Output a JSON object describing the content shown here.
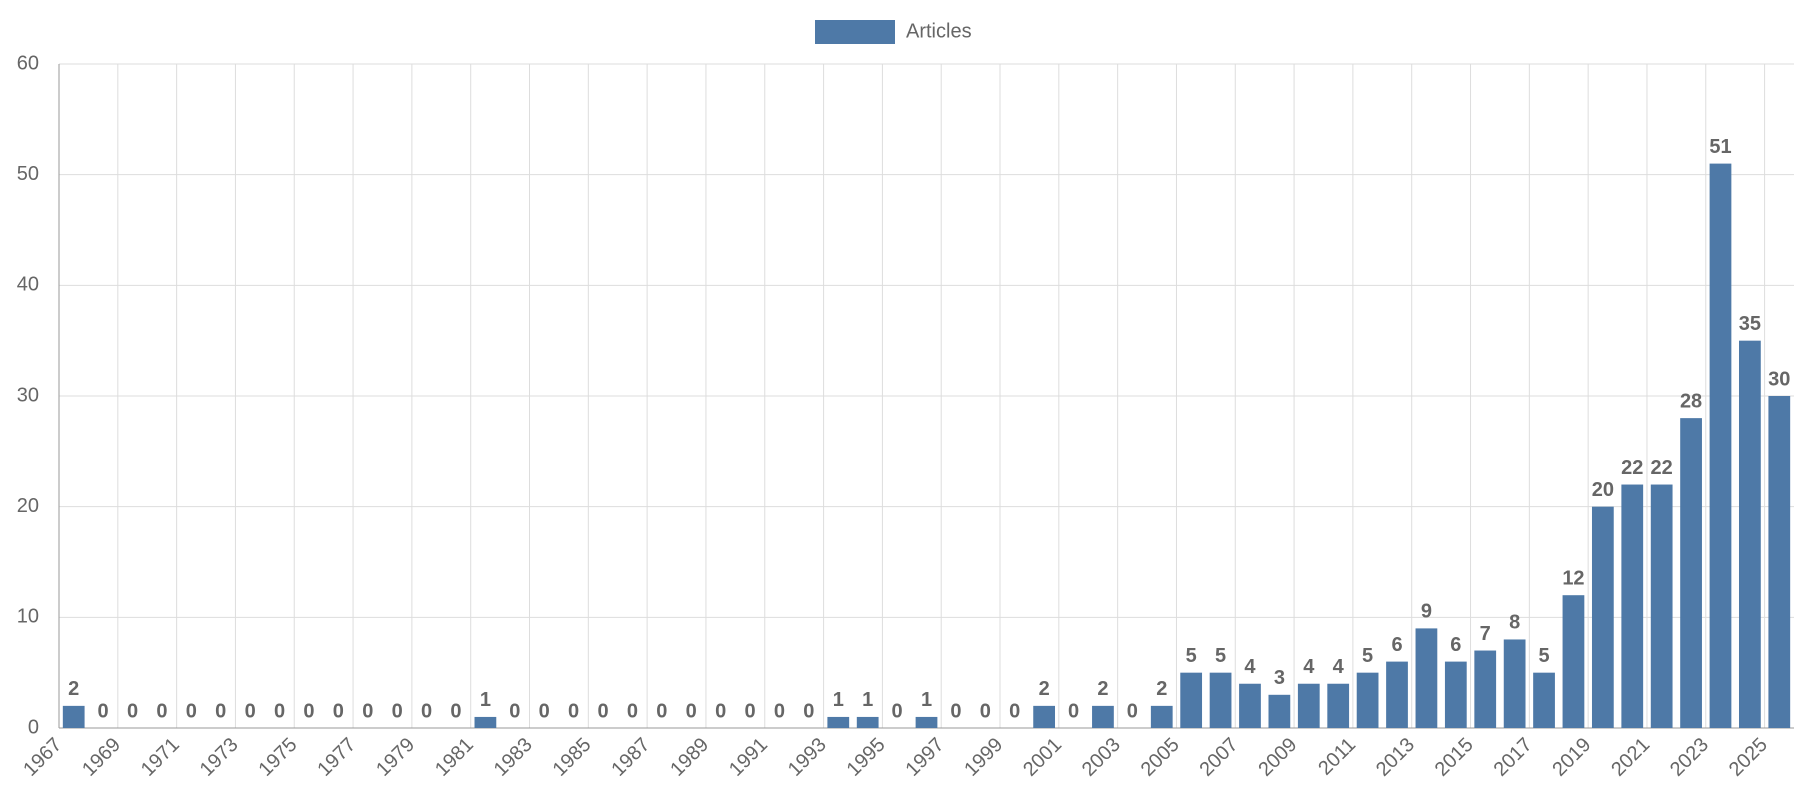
{
  "chart_data": {
    "type": "bar",
    "categories": [
      "1967",
      null,
      "1969",
      null,
      "1971",
      null,
      "1973",
      null,
      "1975",
      null,
      "1977",
      null,
      "1979",
      null,
      "1981",
      null,
      "1983",
      null,
      "1985",
      null,
      "1987",
      null,
      "1989",
      null,
      "1991",
      null,
      "1993",
      null,
      "1995",
      null,
      "1997",
      null,
      "1999",
      null,
      "2001",
      null,
      "2003",
      null,
      "2005",
      null,
      "2007",
      null,
      "2009",
      null,
      "2011",
      null,
      "2013",
      null,
      "2015",
      null,
      "2017",
      null,
      "2019",
      null,
      "2021",
      null,
      "2023",
      null,
      "2025"
    ],
    "series": [
      {
        "name": "Articles",
        "color": "#4e79a7",
        "values": [
          2,
          0,
          0,
          0,
          0,
          0,
          0,
          0,
          0,
          0,
          0,
          0,
          0,
          0,
          1,
          0,
          0,
          0,
          0,
          0,
          0,
          0,
          0,
          0,
          0,
          0,
          1,
          1,
          0,
          1,
          0,
          0,
          0,
          2,
          0,
          2,
          0,
          2,
          5,
          5,
          4,
          3,
          4,
          4,
          5,
          6,
          9,
          6,
          7,
          8,
          5,
          12,
          20,
          22,
          22,
          28,
          51,
          35,
          30
        ]
      }
    ],
    "ylim": [
      0,
      60
    ],
    "yticks": [
      0,
      10,
      20,
      30,
      40,
      50,
      60
    ],
    "grid": true,
    "legend": "top"
  }
}
